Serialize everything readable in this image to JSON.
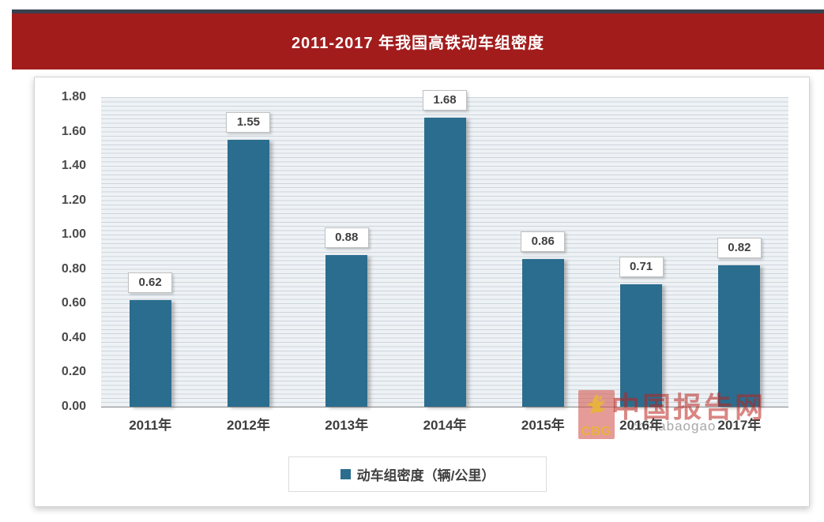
{
  "header": {
    "title": "2011-2017 年我国高铁动车组密度"
  },
  "chart_data": {
    "type": "bar",
    "title": "2011-2017 年我国高铁动车组密度",
    "categories": [
      "2011年",
      "2012年",
      "2013年",
      "2014年",
      "2015年",
      "2016年",
      "2017年"
    ],
    "values": [
      0.62,
      1.55,
      0.88,
      1.68,
      0.86,
      0.71,
      0.82
    ],
    "data_labels": [
      "0.62",
      "1.55",
      "0.88",
      "1.68",
      "0.86",
      "0.71",
      "0.82"
    ],
    "series_name": "动车组密度（辆/公里）",
    "xlabel": "",
    "ylabel": "",
    "ylim": [
      0,
      1.8
    ],
    "yticks": [
      "1.80",
      "1.60",
      "1.40",
      "1.20",
      "1.00",
      "0.80",
      "0.60",
      "0.40",
      "0.20",
      "0.00"
    ],
    "grid": "horizontal-minor-gridlines",
    "legend_position": "bottom-center",
    "bar_color": "#2b6d8e"
  },
  "legend": {
    "label": "动车组密度（辆/公里）"
  },
  "watermark": {
    "logo_initials": "CBG",
    "brand": "中国报告网",
    "domain_fragment": "chinabaogao"
  },
  "colors": {
    "banner_bg": "#a21c1c",
    "top_rule": "#39404e",
    "bar": "#2b6d8e",
    "plot_bg": "#eef2f5",
    "gridline": "#ccd6dd",
    "axis_line": "#8f8f8f",
    "label_text": "#404040",
    "watermark_red": "rgba(185,35,30,0.55)"
  }
}
